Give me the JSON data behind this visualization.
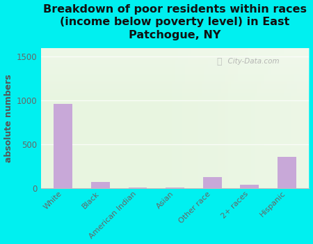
{
  "title": "Breakdown of poor residents within races\n(income below poverty level) in East\nPatchogue, NY",
  "categories": [
    "White",
    "Black",
    "American Indian",
    "Asian",
    "Other race",
    "2+ races",
    "Hispanic"
  ],
  "values": [
    960,
    70,
    5,
    10,
    130,
    40,
    360
  ],
  "bar_color": "#c8a8d8",
  "ylabel": "absolute numbers",
  "ylim": [
    0,
    1600
  ],
  "yticks": [
    0,
    500,
    1000,
    1500
  ],
  "background_outer": "#00f0f0",
  "background_plot": "#e8f5e0",
  "watermark": "City-Data.com",
  "title_fontsize": 11.5,
  "bar_width": 0.5,
  "tick_label_color": "#666666",
  "ylabel_color": "#555555",
  "title_color": "#111111"
}
